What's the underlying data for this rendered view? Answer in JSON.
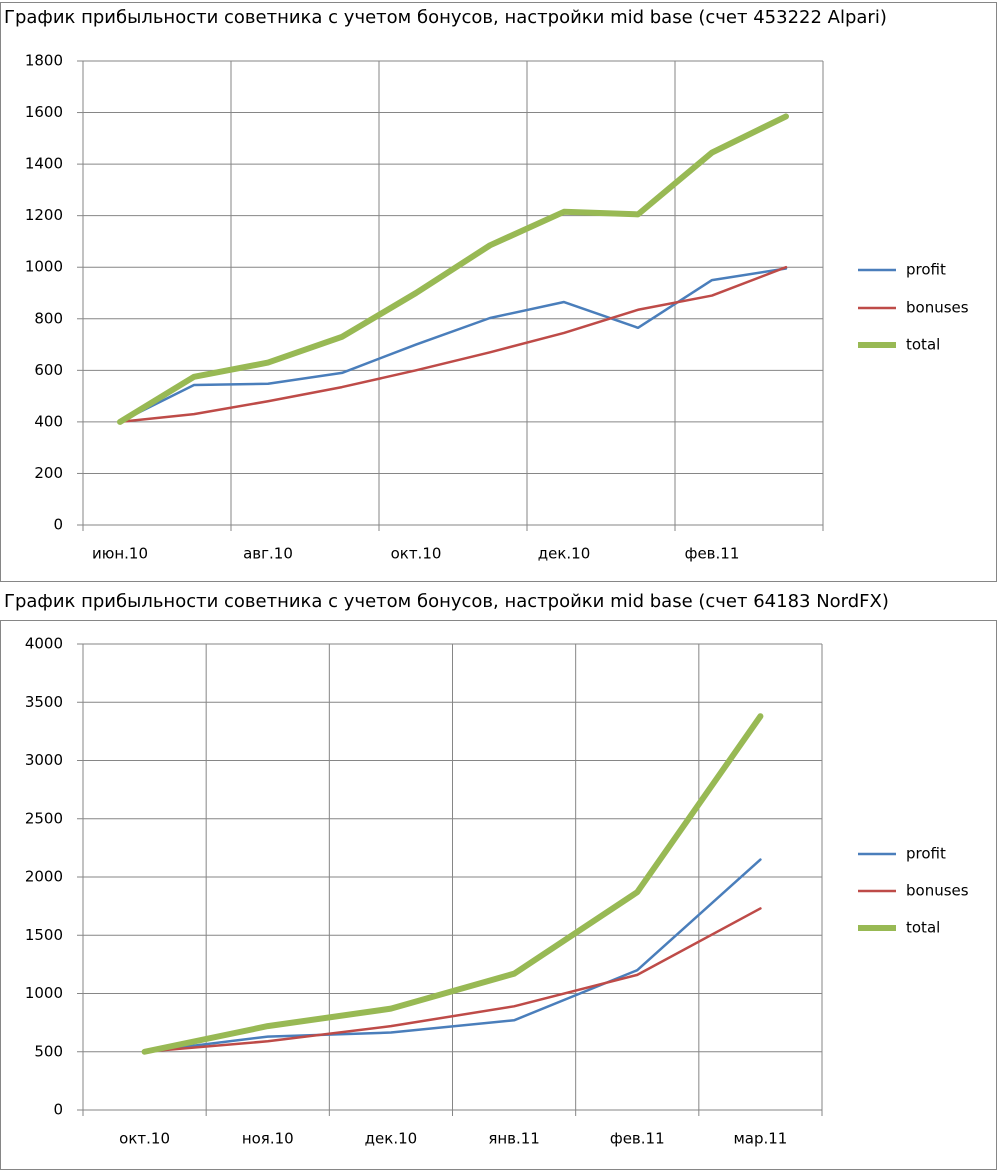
{
  "chart_data": [
    {
      "type": "line",
      "title": "График прибыльности советника с учетом бонусов, настройки mid base (счет 453222 Alpari)",
      "categories": [
        "июн.10",
        null,
        "авг.10",
        null,
        "окт.10",
        null,
        "дек.10",
        null,
        "фев.11",
        null
      ],
      "ylim": [
        0,
        1800
      ],
      "yticks": [
        0,
        200,
        400,
        600,
        800,
        1000,
        1200,
        1400,
        1600,
        1800
      ],
      "grid": true,
      "legend": "right",
      "series": [
        {
          "name": "profit",
          "color": "#4a7ebb",
          "values": [
            400,
            543,
            548,
            590,
            700,
            803,
            865,
            765,
            950,
            995
          ]
        },
        {
          "name": "bonuses",
          "color": "#be4b48",
          "values": [
            400,
            430,
            480,
            535,
            600,
            670,
            745,
            835,
            890,
            1000
          ]
        },
        {
          "name": "total",
          "color": "#98b954",
          "values": [
            400,
            575,
            630,
            730,
            900,
            1085,
            1215,
            1205,
            1445,
            1585
          ]
        }
      ]
    },
    {
      "type": "line",
      "title": "График прибыльности советника с учетом бонусов, настройки mid base (счет 64183 NordFX)",
      "categories": [
        "окт.10",
        "ноя.10",
        "дек.10",
        "янв.11",
        "фев.11",
        "мар.11"
      ],
      "ylim": [
        0,
        4000
      ],
      "yticks": [
        0,
        500,
        1000,
        1500,
        2000,
        2500,
        3000,
        3500,
        4000
      ],
      "grid": true,
      "legend": "right",
      "series": [
        {
          "name": "profit",
          "color": "#4a7ebb",
          "values": [
            500,
            630,
            665,
            770,
            1200,
            2150
          ]
        },
        {
          "name": "bonuses",
          "color": "#be4b48",
          "values": [
            500,
            590,
            720,
            890,
            1160,
            1730
          ]
        },
        {
          "name": "total",
          "color": "#98b954",
          "values": [
            500,
            720,
            870,
            1170,
            1870,
            3380
          ]
        }
      ]
    }
  ]
}
